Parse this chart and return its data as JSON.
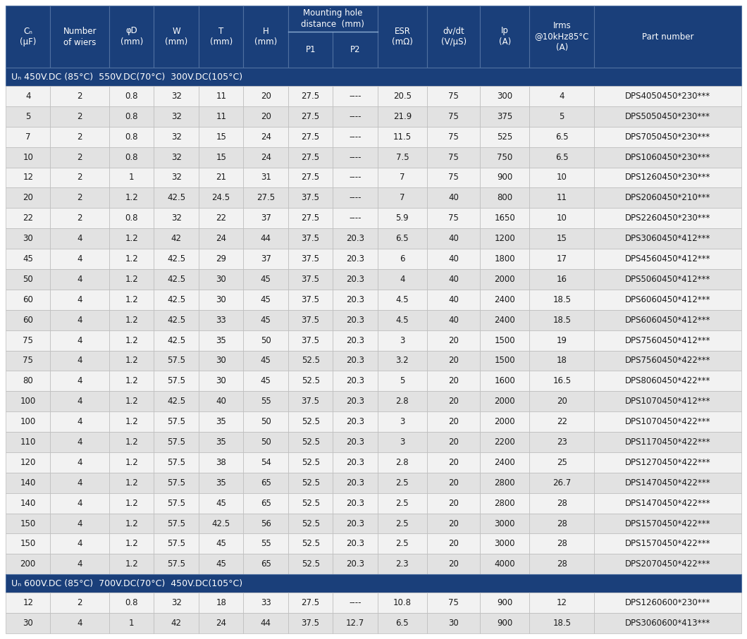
{
  "header_bg": "#1a3f7a",
  "section_bg": "#1a3f7a",
  "row_colors": [
    "#f2f2f2",
    "#e2e2e2"
  ],
  "header_text_color": "#ffffff",
  "data_text_color": "#1a1a1a",
  "section_text_color": "#ffffff",
  "col_widths_rel": [
    3.8,
    5.0,
    3.8,
    3.8,
    3.8,
    3.8,
    3.8,
    3.8,
    4.2,
    4.5,
    4.2,
    5.5,
    12.5
  ],
  "section1_label": "Uₙ 450V.DC (85°C)  550V.DC(70°C)  300V.DC(105°C)",
  "section2_label": "Uₙ 600V.DC (85°C)  700V.DC(70°C)  450V.DC(105°C)",
  "col_span_labels": [
    "Cₙ\n(µF)",
    "Number\nof wiers",
    "φD\n(mm)",
    "W\n(mm)",
    "T\n(mm)",
    "H\n(mm)"
  ],
  "mounting_label": "Mounting hole\ndistance  (mm)",
  "p1_label": "P1",
  "p2_label": "P2",
  "col_right_labels": [
    "ESR\n(mΩ)",
    "dv/dt\n(V/µS)",
    "Ip\n(A)",
    "Irms\n@10kHz85°C\n(A)",
    "Part number"
  ],
  "rows1": [
    [
      "4",
      "2",
      "0.8",
      "32",
      "11",
      "20",
      "27.5",
      "----",
      "20.5",
      "75",
      "300",
      "4",
      "DPS4050450*230***"
    ],
    [
      "5",
      "2",
      "0.8",
      "32",
      "11",
      "20",
      "27.5",
      "----",
      "21.9",
      "75",
      "375",
      "5",
      "DPS5050450*230***"
    ],
    [
      "7",
      "2",
      "0.8",
      "32",
      "15",
      "24",
      "27.5",
      "----",
      "11.5",
      "75",
      "525",
      "6.5",
      "DPS7050450*230***"
    ],
    [
      "10",
      "2",
      "0.8",
      "32",
      "15",
      "24",
      "27.5",
      "----",
      "7.5",
      "75",
      "750",
      "6.5",
      "DPS1060450*230***"
    ],
    [
      "12",
      "2",
      "1",
      "32",
      "21",
      "31",
      "27.5",
      "----",
      "7",
      "75",
      "900",
      "10",
      "DPS1260450*230***"
    ],
    [
      "20",
      "2",
      "1.2",
      "42.5",
      "24.5",
      "27.5",
      "37.5",
      "----",
      "7",
      "40",
      "800",
      "11",
      "DPS2060450*210***"
    ],
    [
      "22",
      "2",
      "0.8",
      "32",
      "22",
      "37",
      "27.5",
      "----",
      "5.9",
      "75",
      "1650",
      "10",
      "DPS2260450*230***"
    ],
    [
      "30",
      "4",
      "1.2",
      "42",
      "24",
      "44",
      "37.5",
      "20.3",
      "6.5",
      "40",
      "1200",
      "15",
      "DPS3060450*412***"
    ],
    [
      "45",
      "4",
      "1.2",
      "42.5",
      "29",
      "37",
      "37.5",
      "20.3",
      "6",
      "40",
      "1800",
      "17",
      "DPS4560450*412***"
    ],
    [
      "50",
      "4",
      "1.2",
      "42.5",
      "30",
      "45",
      "37.5",
      "20.3",
      "4",
      "40",
      "2000",
      "16",
      "DPS5060450*412***"
    ],
    [
      "60",
      "4",
      "1.2",
      "42.5",
      "30",
      "45",
      "37.5",
      "20.3",
      "4.5",
      "40",
      "2400",
      "18.5",
      "DPS6060450*412***"
    ],
    [
      "60",
      "4",
      "1.2",
      "42.5",
      "33",
      "45",
      "37.5",
      "20.3",
      "4.5",
      "40",
      "2400",
      "18.5",
      "DPS6060450*412***"
    ],
    [
      "75",
      "4",
      "1.2",
      "42.5",
      "35",
      "50",
      "37.5",
      "20.3",
      "3",
      "20",
      "1500",
      "19",
      "DPS7560450*412***"
    ],
    [
      "75",
      "4",
      "1.2",
      "57.5",
      "30",
      "45",
      "52.5",
      "20.3",
      "3.2",
      "20",
      "1500",
      "18",
      "DPS7560450*422***"
    ],
    [
      "80",
      "4",
      "1.2",
      "57.5",
      "30",
      "45",
      "52.5",
      "20.3",
      "5",
      "20",
      "1600",
      "16.5",
      "DPS8060450*422***"
    ],
    [
      "100",
      "4",
      "1.2",
      "42.5",
      "40",
      "55",
      "37.5",
      "20.3",
      "2.8",
      "20",
      "2000",
      "20",
      "DPS1070450*412***"
    ],
    [
      "100",
      "4",
      "1.2",
      "57.5",
      "35",
      "50",
      "52.5",
      "20.3",
      "3",
      "20",
      "2000",
      "22",
      "DPS1070450*422***"
    ],
    [
      "110",
      "4",
      "1.2",
      "57.5",
      "35",
      "50",
      "52.5",
      "20.3",
      "3",
      "20",
      "2200",
      "23",
      "DPS1170450*422***"
    ],
    [
      "120",
      "4",
      "1.2",
      "57.5",
      "38",
      "54",
      "52.5",
      "20.3",
      "2.8",
      "20",
      "2400",
      "25",
      "DPS1270450*422***"
    ],
    [
      "140",
      "4",
      "1.2",
      "57.5",
      "35",
      "65",
      "52.5",
      "20.3",
      "2.5",
      "20",
      "2800",
      "26.7",
      "DPS1470450*422***"
    ],
    [
      "140",
      "4",
      "1.2",
      "57.5",
      "45",
      "65",
      "52.5",
      "20.3",
      "2.5",
      "20",
      "2800",
      "28",
      "DPS1470450*422***"
    ],
    [
      "150",
      "4",
      "1.2",
      "57.5",
      "42.5",
      "56",
      "52.5",
      "20.3",
      "2.5",
      "20",
      "3000",
      "28",
      "DPS1570450*422***"
    ],
    [
      "150",
      "4",
      "1.2",
      "57.5",
      "45",
      "55",
      "52.5",
      "20.3",
      "2.5",
      "20",
      "3000",
      "28",
      "DPS1570450*422***"
    ],
    [
      "200",
      "4",
      "1.2",
      "57.5",
      "45",
      "65",
      "52.5",
      "20.3",
      "2.3",
      "20",
      "4000",
      "28",
      "DPS2070450*422***"
    ]
  ],
  "rows2": [
    [
      "12",
      "2",
      "0.8",
      "32",
      "18",
      "33",
      "27.5",
      "----",
      "10.8",
      "75",
      "900",
      "12",
      "DPS1260600*230***"
    ],
    [
      "30",
      "4",
      "1",
      "42",
      "24",
      "44",
      "37.5",
      "12.7",
      "6.5",
      "30",
      "900",
      "18.5",
      "DPS3060600*413***"
    ]
  ]
}
